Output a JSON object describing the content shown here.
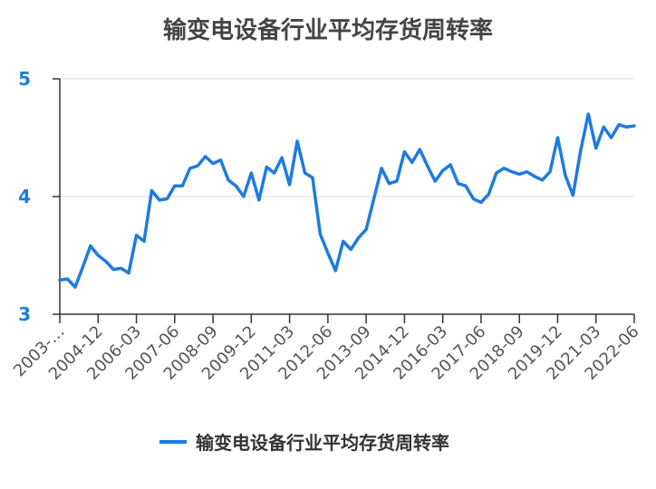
{
  "chart_data": {
    "type": "line",
    "title": "输变电设备行业平均存货周转率",
    "xlabel": "",
    "ylabel": "",
    "ylim": [
      3,
      5
    ],
    "yticks": [
      3,
      4,
      5
    ],
    "grid": true,
    "legend_position": "bottom",
    "colors": {
      "line": "#1e7be0",
      "axis": "#333333",
      "grid": "#dddddd"
    },
    "x_tick_labels": [
      "2003-…",
      "2004-12",
      "2006-03",
      "2007-06",
      "2008-09",
      "2009-12",
      "2011-03",
      "2012-06",
      "2013-09",
      "2014-12",
      "2016-03",
      "2017-06",
      "2018-09",
      "2019-12",
      "2021-03",
      "2022-06"
    ],
    "series": [
      {
        "name": "输变电设备行业平均存货周转率",
        "values": [
          3.29,
          3.3,
          3.23,
          3.4,
          3.58,
          3.5,
          3.45,
          3.38,
          3.39,
          3.35,
          3.67,
          3.62,
          4.05,
          3.97,
          3.98,
          4.09,
          4.09,
          4.24,
          4.26,
          4.34,
          4.28,
          4.31,
          4.14,
          4.09,
          4.0,
          4.2,
          3.97,
          4.25,
          4.2,
          4.33,
          4.1,
          4.47,
          4.2,
          4.16,
          3.68,
          3.52,
          3.37,
          3.62,
          3.55,
          3.65,
          3.72,
          3.98,
          4.24,
          4.11,
          4.13,
          4.38,
          4.29,
          4.4,
          4.26,
          4.13,
          4.22,
          4.27,
          4.11,
          4.09,
          3.98,
          3.95,
          4.02,
          4.2,
          4.24,
          4.21,
          4.19,
          4.21,
          4.17,
          4.14,
          4.21,
          4.5,
          4.18,
          4.01,
          4.39,
          4.7,
          4.41,
          4.59,
          4.5,
          4.61,
          4.59,
          4.6
        ]
      }
    ]
  }
}
